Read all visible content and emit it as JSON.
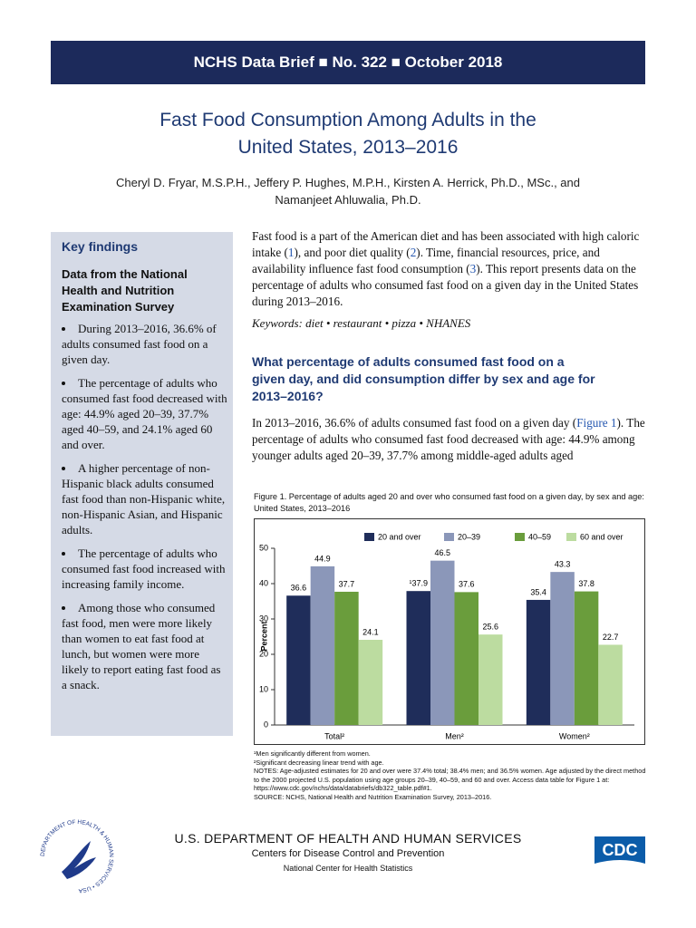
{
  "header": {
    "title": "NCHS Data Brief ■ No. 322 ■ October 2018"
  },
  "title_lines": [
    "Fast Food Consumption Among Adults in the",
    "United States, 2013–2016"
  ],
  "author_lines": [
    "Cheryl D. Fryar, M.S.P.H., Jeffery P. Hughes, M.P.H., Kirsten A. Herrick, Ph.D., MSc., and",
    "Namanjeet Ahluwalia, Ph.D."
  ],
  "sidebar": {
    "heading": "Key findings",
    "subheading": "Data from the National Health and Nutrition Examination Survey",
    "bullets": [
      "During 2013–2016, 36.6% of adults consumed fast food on a given day.",
      "The percentage of adults who consumed fast food decreased with age: 44.9% aged 20–39, 37.7% aged 40–59, and 24.1% aged 60 and over.",
      "A higher percentage of non-Hispanic black adults consumed fast food than non-Hispanic white, non-Hispanic Asian, and Hispanic adults.",
      "The percentage of adults who consumed fast food increased with increasing family income.",
      "Among those who consumed fast food, men were more likely than women to eat fast food at lunch, but women were more likely to report eating fast food as a snack."
    ]
  },
  "intro": [
    "Fast food is a part of the American diet and has been associated with high caloric intake (",
    "1",
    "), and poor diet quality (",
    "2",
    "). Time, financial resources, price, and availability influence fast food consumption (",
    "3",
    "). This report presents data on the percentage of adults who consumed fast food on a given day in the United States during 2013–2016."
  ],
  "keywords": "Keywords: diet • restaurant • pizza • NHANES",
  "question_lines": [
    "What percentage of adults consumed fast food on a",
    "given day, and did consumption differ by sex and age for",
    "2013–2016?"
  ],
  "answer": [
    "In 2013–2016, 36.6% of adults consumed fast food on a given day (",
    "Figure 1",
    "). The percentage of adults who consumed fast food decreased with age: 44.9% among younger adults aged 20–39, 37.7% among middle-aged adults aged"
  ],
  "chart_data": {
    "type": "bar",
    "title": "Figure 1. Percentage of adults aged 20 and over who consumed fast food on a given day, by sex and age: United States, 2013–2016",
    "categories": [
      "Total²",
      "Men²",
      "Women²"
    ],
    "y_label": "Percent",
    "ylim": [
      0,
      50
    ],
    "yticks": [
      0,
      10,
      20,
      30,
      40,
      50
    ],
    "series": [
      {
        "name": "20 and over",
        "color": "#1f2d5a",
        "values": [
          36.6,
          37.9,
          35.4
        ],
        "value_labels": [
          "36.6",
          "¹37.9",
          "35.4"
        ]
      },
      {
        "name": "20–39",
        "color": "#8b97b9",
        "values": [
          44.9,
          46.5,
          43.3
        ]
      },
      {
        "name": "40–59",
        "color": "#6a9d3c",
        "values": [
          37.7,
          37.6,
          37.8
        ]
      },
      {
        "name": "60 and over",
        "color": "#bcdca0",
        "values": [
          24.1,
          25.6,
          22.7
        ]
      }
    ],
    "legend": "top-right",
    "grid": false
  },
  "footnotes": [
    "¹Men significantly different from women.",
    "²Significant decreasing linear trend with age.",
    "NOTES: Age-adjusted estimates for 20 and over were 37.4% total; 38.4% men; and 36.5% women. Age adjusted by the direct method to the 2000 projected U.S. population using age groups 20–39, 40–59, and 60 and over. Access data table for Figure 1 at: https://www.cdc.gov/nchs/data/databriefs/db322_table.pdf#1.",
    "SOURCE: NCHS, National Health and Nutrition Examination Survey, 2013–2016."
  ],
  "footer": {
    "department": "U.S. DEPARTMENT OF HEALTH AND HUMAN SERVICES",
    "agency": "Centers for Disease Control and Prevention",
    "center": "National Center for Health Statistics"
  },
  "logos": {
    "hhs_seal": "DEPARTMENT OF HEALTH & HUMAN SERVICES • USA",
    "cdc": "CDC"
  }
}
